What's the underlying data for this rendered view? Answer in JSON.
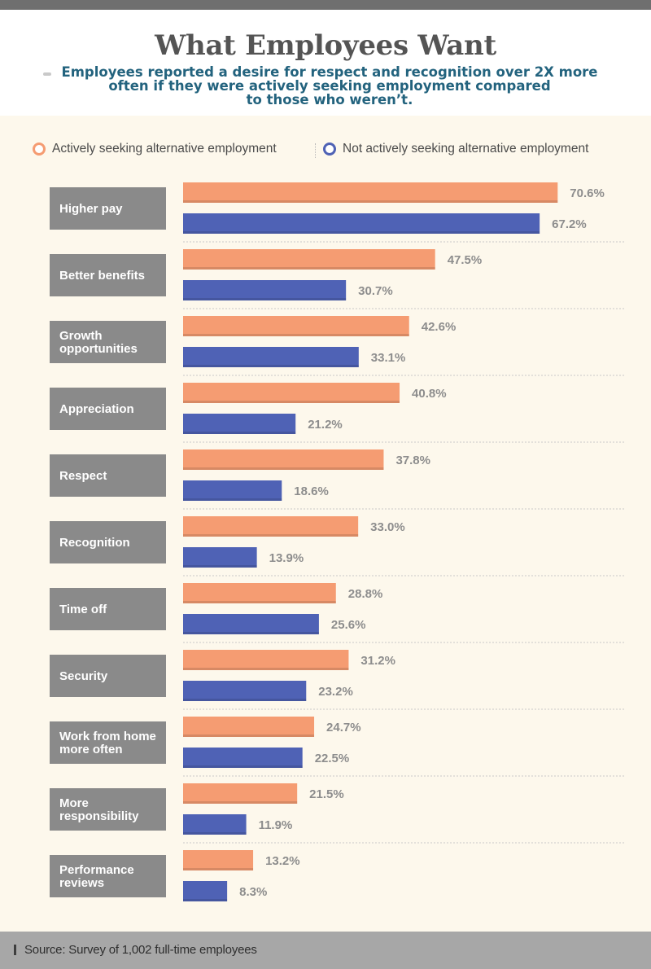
{
  "header": {
    "title": "What Employees Want",
    "subtitle_lines": [
      "Employees reported a desire for respect and recognition over 2X more",
      "often if they were actively seeking employment compared",
      "to those who weren’t."
    ]
  },
  "colors": {
    "seeking": "#f59c72",
    "not_seeking": "#4f62b5",
    "label_box": "#8a8a8a",
    "value_text": "#8d8d8d",
    "background": "#fdf8ec"
  },
  "chart_data": {
    "type": "bar",
    "orientation": "horizontal",
    "title": "What Employees Want",
    "categories": [
      [
        "Higher pay"
      ],
      [
        "Better benefits"
      ],
      [
        "Growth",
        "opportunities"
      ],
      [
        "Appreciation"
      ],
      [
        "Respect"
      ],
      [
        "Recognition"
      ],
      [
        "Time off"
      ],
      [
        "Security"
      ],
      [
        "Work from home",
        "more often"
      ],
      [
        "More",
        "responsibility"
      ],
      [
        "Performance",
        "reviews"
      ]
    ],
    "series": [
      {
        "name": "Actively seeking alternative employment",
        "values": [
          70.6,
          47.5,
          42.6,
          40.8,
          37.8,
          33.0,
          28.8,
          31.2,
          24.7,
          21.5,
          13.2
        ],
        "labels": [
          "70.6%",
          "47.5%",
          "42.6%",
          "40.8%",
          "37.8%",
          "33.0%",
          "28.8%",
          "31.2%",
          "24.7%",
          "21.5%",
          "13.2%"
        ]
      },
      {
        "name": "Not actively seeking alternative employment",
        "values": [
          67.2,
          30.7,
          33.1,
          21.2,
          18.6,
          13.9,
          25.6,
          23.2,
          22.5,
          11.9,
          8.3
        ],
        "labels": [
          "67.2%",
          "30.7%",
          "33.1%",
          "21.2%",
          "18.6%",
          "13.9%",
          "25.6%",
          "23.2%",
          "22.5%",
          "11.9%",
          "8.3%"
        ]
      }
    ],
    "xlim": [
      0,
      100
    ],
    "legend_position": "top"
  },
  "legend": {
    "seeking_label": "Actively seeking alternative employment",
    "not_seeking_label": "Not actively seeking alternative employment"
  },
  "footer": {
    "source": "Source: Survey of 1,002 full-time employees"
  }
}
